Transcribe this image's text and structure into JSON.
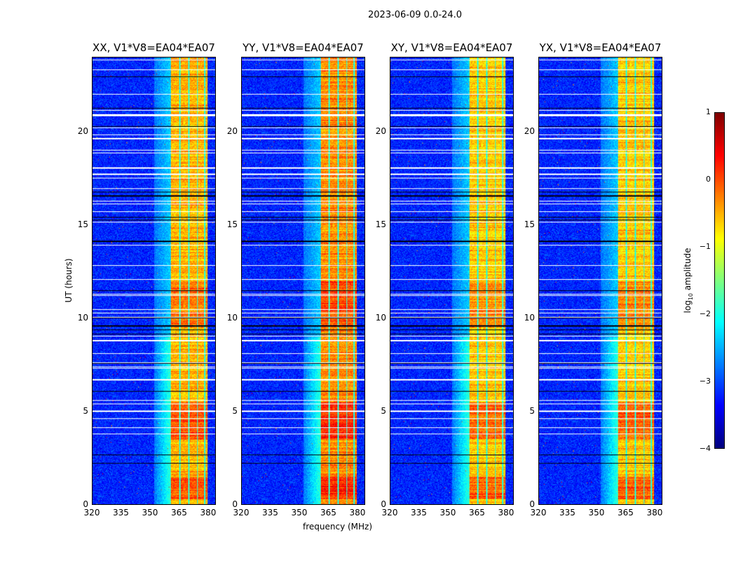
{
  "chart_data": {
    "type": "heatmap",
    "title": "2023-06-09 0.0-24.0",
    "xlabel": "frequency (MHz)",
    "ylabel": "UT (hours)",
    "xlim": [
      320,
      384
    ],
    "ylim": [
      0,
      24
    ],
    "xticks": [
      "320",
      "335",
      "350",
      "365",
      "380"
    ],
    "yticks": [
      "0",
      "5",
      "10",
      "15",
      "20"
    ],
    "panels": [
      {
        "title": "XX, V1*V8=EA04*EA07",
        "band_mhz": [
          360.5,
          380
        ],
        "band_level": -0.5
      },
      {
        "title": "YY, V1*V8=EA04*EA07",
        "band_mhz": [
          361,
          380
        ],
        "band_level": -0.3
      },
      {
        "title": "XY, V1*V8=EA04*EA07",
        "band_mhz": [
          361,
          380
        ],
        "band_level": -0.6
      },
      {
        "title": "YX, V1*V8=EA04*EA07",
        "band_mhz": [
          361,
          380
        ],
        "band_level": -0.6
      }
    ],
    "background_level": -3.2,
    "colorbar": {
      "label": "log10 amplitude",
      "label_main": "log",
      "label_sub": "10",
      "label_rest": " amplitude",
      "range": [
        -4,
        1
      ],
      "ticks": [
        "1",
        "0",
        "−1",
        "−2",
        "−3",
        "−4"
      ],
      "colormap": "jet"
    }
  }
}
